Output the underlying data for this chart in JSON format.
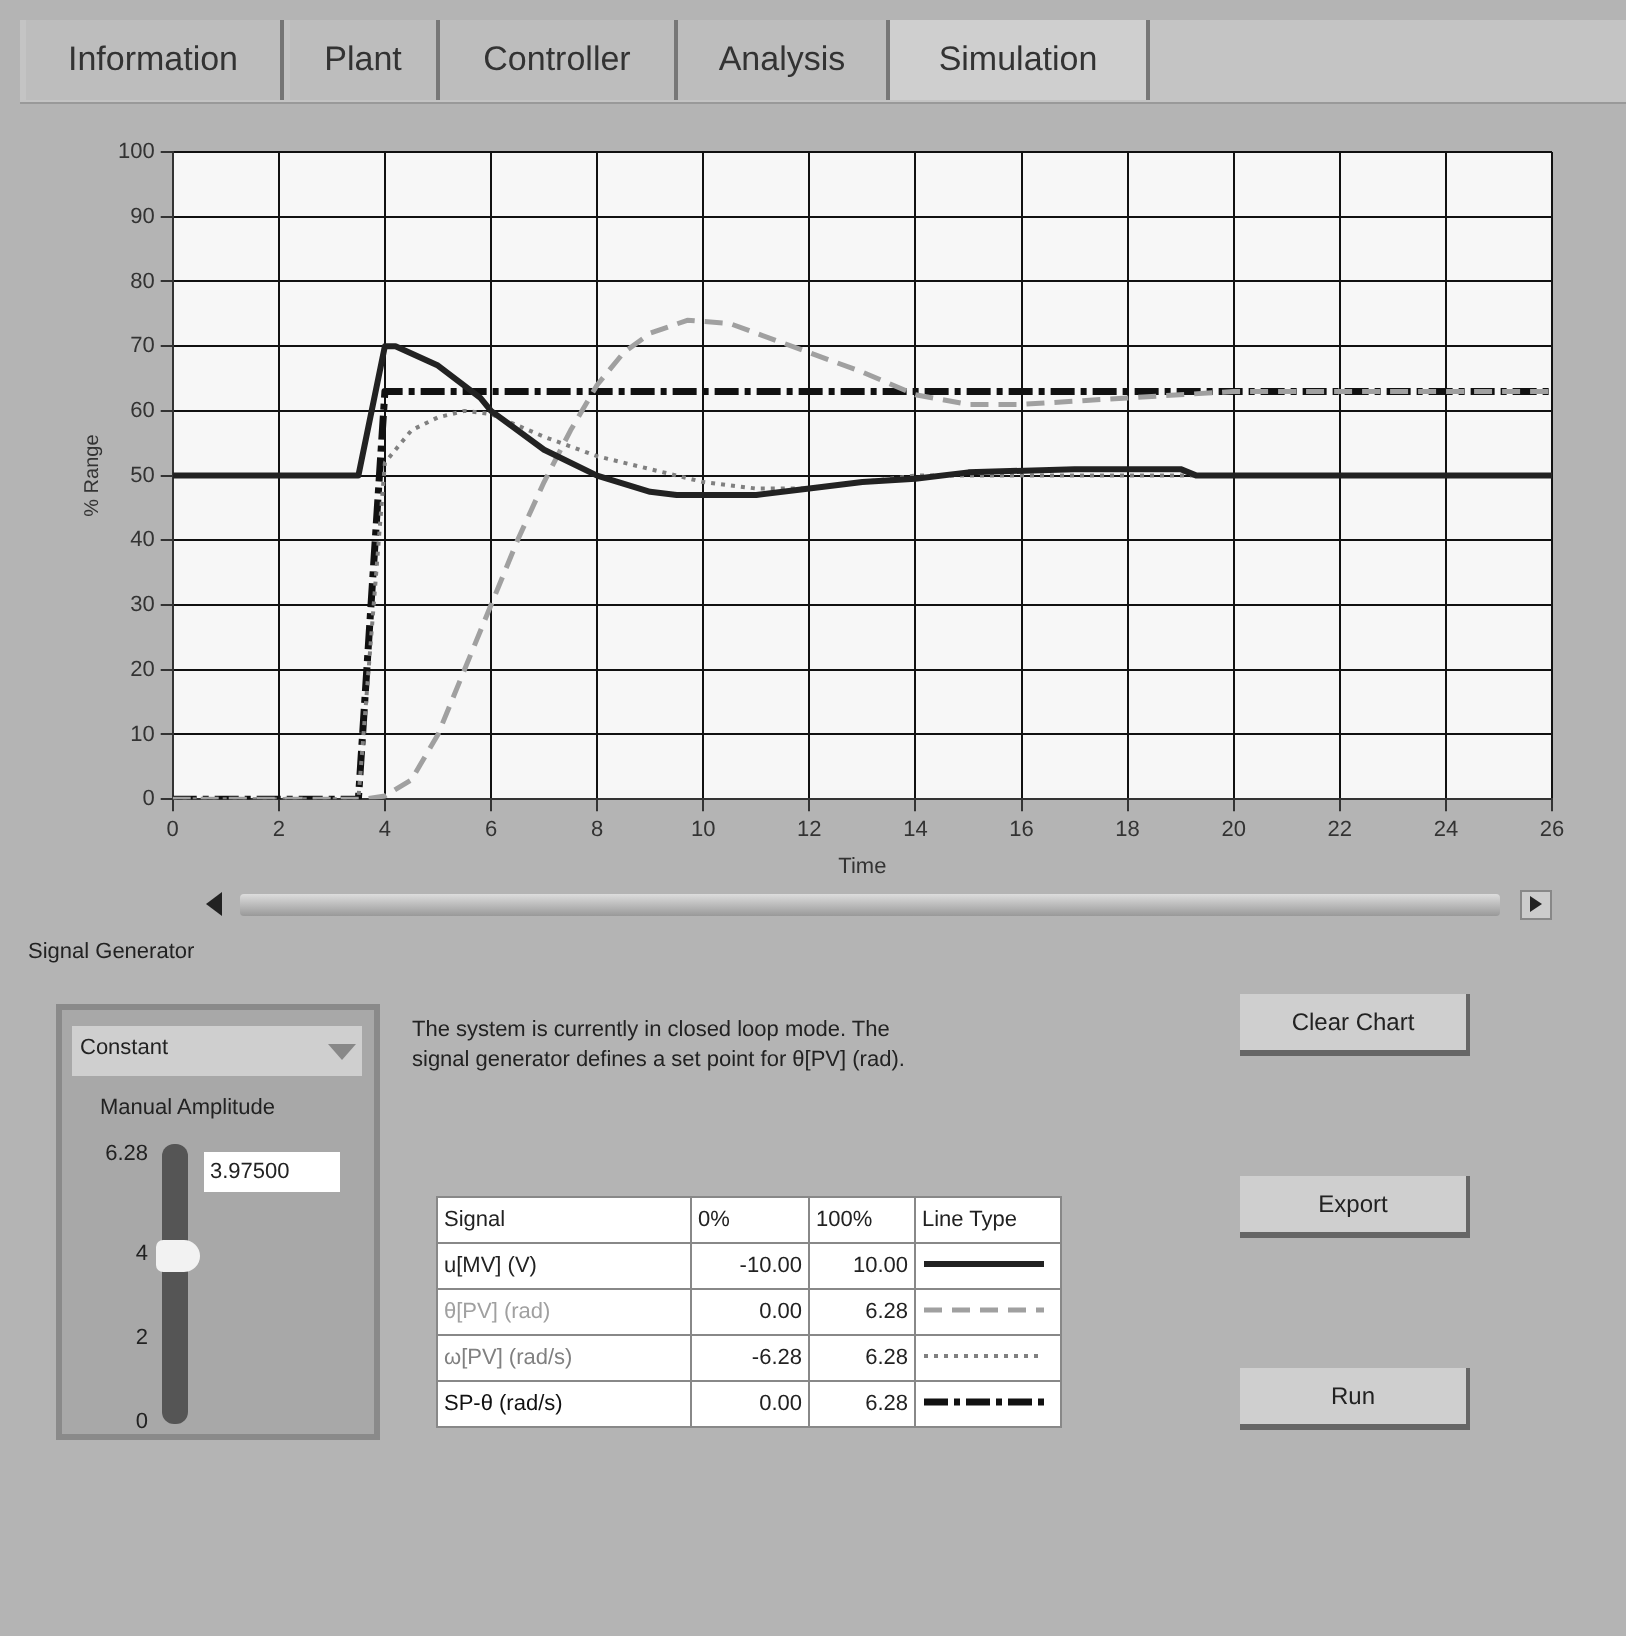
{
  "chart_data": {
    "type": "line",
    "xlabel": "Time",
    "ylabel": "% Range",
    "xlim": [
      0,
      26
    ],
    "ylim": [
      0,
      100
    ],
    "xticks": [
      0,
      2,
      4,
      6,
      8,
      10,
      12,
      14,
      16,
      18,
      20,
      22,
      24,
      26
    ],
    "yticks": [
      0,
      10,
      20,
      30,
      40,
      50,
      60,
      70,
      80,
      90,
      100
    ],
    "grid": true,
    "legend": "bottom",
    "legend_title": "Signal",
    "marker": "none",
    "series": [
      {
        "name": "u[MV] (V)",
        "color": "#222222",
        "line_style": "solid",
        "x": [
          0,
          3.5,
          4,
          4.2,
          5,
          5.8,
          6,
          7,
          8,
          9,
          9.5,
          11,
          12,
          13,
          14,
          15,
          17,
          19,
          19.3,
          26
        ],
        "values": [
          50,
          50,
          70,
          70,
          67,
          62,
          60,
          54,
          50,
          47.5,
          47,
          47,
          48,
          49,
          49.5,
          50.5,
          51,
          51,
          50,
          50
        ]
      },
      {
        "name": "θ[PV] (rad)",
        "color": "#a0a0a0",
        "line_style": "dashed",
        "x": [
          0,
          3.6,
          4,
          4.5,
          5,
          5.5,
          6,
          6.5,
          7,
          7.5,
          8,
          8.5,
          9,
          9.7,
          10.5,
          11,
          12,
          13,
          14,
          15,
          16,
          18,
          20,
          26
        ],
        "values": [
          0,
          0,
          0.5,
          3,
          10,
          20,
          30,
          40,
          49,
          57,
          64,
          69,
          72,
          74,
          73.5,
          72,
          69,
          66,
          62.5,
          61,
          61,
          62,
          63,
          63
        ]
      },
      {
        "name": "ω[PV] (rad/s)",
        "color": "#808080",
        "line_style": "dotted",
        "x": [
          0,
          3.5,
          4,
          4.5,
          5,
          5.5,
          6,
          7,
          8,
          9,
          10,
          11,
          12,
          13,
          14,
          16,
          26
        ],
        "values": [
          0,
          0,
          52,
          57,
          59,
          60,
          59.5,
          56,
          53,
          51,
          49,
          48,
          48,
          49,
          50,
          50,
          50
        ]
      },
      {
        "name": "SP-θ (rad/s)",
        "color": "#111111",
        "line_style": "dashdot",
        "x": [
          0,
          3.5,
          4,
          26
        ],
        "values": [
          0,
          0,
          63,
          63
        ]
      }
    ],
    "annotations": [
      "Information",
      "Plant",
      "Controller",
      "Analysis",
      "Simulation",
      "Signal Generator",
      "Constant",
      "Manual Amplitude",
      "6.28",
      "4",
      "2",
      "0",
      "3.97500",
      "The system is currently in closed loop mode. The signal generator defines a set point for θ[PV] (rad).",
      "0%",
      "100%",
      "Line Type",
      "-10.00",
      "10.00",
      "0.00",
      "6.28",
      "-6.28",
      "6.28",
      "0.00",
      "6.28",
      "Clear Chart",
      "Export",
      "Run"
    ]
  }
}
